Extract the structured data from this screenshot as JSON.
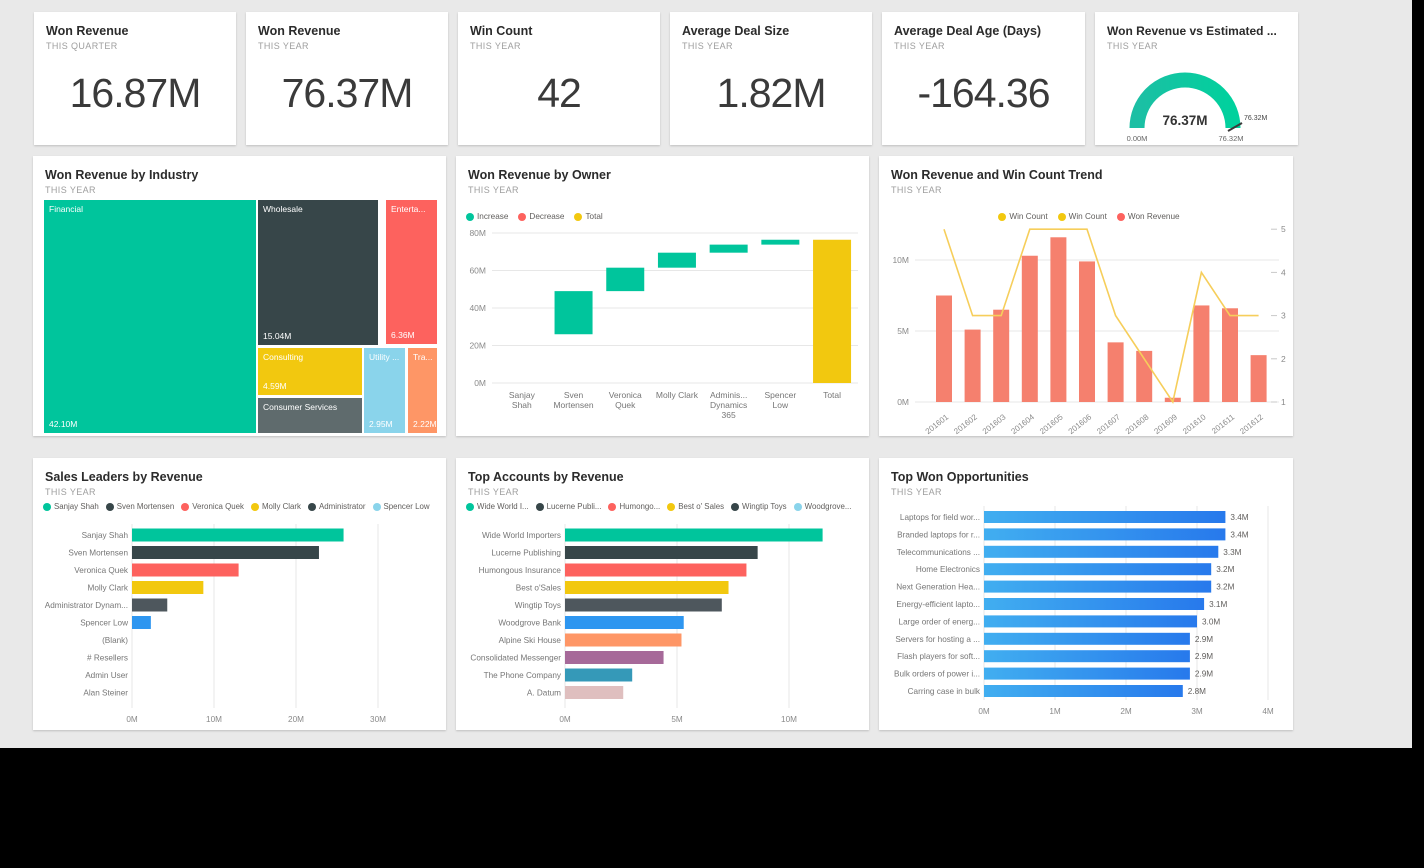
{
  "colors": {
    "canvas_bg": "#E9E9E9",
    "tile_bg": "#FFFFFF",
    "green": "#00C59C",
    "dark_slate": "#374649",
    "red": "#FD625E",
    "yellow": "#F2C80F",
    "gray": "#5F6B6D",
    "light_blue": "#8AD4EB",
    "orange": "#FE9666",
    "vivid_blue": "#2E96F0",
    "purple": "#A66999",
    "teal_blue": "#3599B8",
    "dusty_pink": "#DFBFBF",
    "salmon_bar": "#F5806E",
    "amber_line": "#F6CE5B",
    "admin_gray": "#4E575D",
    "gridline": "#E7E7E7",
    "axis_text": "#8A8A8A"
  },
  "chart_data": [
    {
      "type": "kpi",
      "title": "Won Revenue",
      "subtitle": "THIS QUARTER",
      "value": "16.87M"
    },
    {
      "type": "kpi",
      "title": "Won Revenue",
      "subtitle": "THIS YEAR",
      "value": "76.37M"
    },
    {
      "type": "kpi",
      "title": "Win Count",
      "subtitle": "THIS YEAR",
      "value": "42"
    },
    {
      "type": "kpi",
      "title": "Average Deal Size",
      "subtitle": "THIS YEAR",
      "value": "1.82M"
    },
    {
      "type": "kpi",
      "title": "Average Deal Age (Days)",
      "subtitle": "THIS YEAR",
      "value": "-164.36"
    },
    {
      "type": "gauge",
      "title": "Won Revenue vs Estimated ...",
      "subtitle": "THIS YEAR",
      "value": 76.37,
      "min": 0,
      "max": 76.32,
      "value_label": "76.37M",
      "min_label": "0.00M",
      "max_label": "76.32M",
      "target_label": "76.32M",
      "color_start": "#1CBFA4",
      "color_end": "#00D19D"
    },
    {
      "type": "treemap",
      "title": "Won Revenue by Industry",
      "subtitle": "THIS YEAR",
      "items": [
        {
          "label": "Financial",
          "value": 42.1,
          "value_label": "42.10M",
          "color": "#00C59C"
        },
        {
          "label": "Wholesale",
          "value": 15.04,
          "value_label": "15.04M",
          "color": "#374649"
        },
        {
          "label": "Enterta...",
          "value": 6.36,
          "value_label": "6.36M",
          "color": "#FD625E"
        },
        {
          "label": "Consulting",
          "value": 4.59,
          "value_label": "4.59M",
          "color": "#F2C80F"
        },
        {
          "label": "Consumer Services",
          "value_label": "",
          "color": "#5F6B6D"
        },
        {
          "label": "Utility ...",
          "value": 2.95,
          "value_label": "2.95M",
          "color": "#8AD4EB"
        },
        {
          "label": "Tra...",
          "value": 2.22,
          "value_label": "2.22M",
          "color": "#FE9666"
        }
      ]
    },
    {
      "type": "waterfall",
      "title": "Won Revenue by Owner",
      "subtitle": "THIS YEAR",
      "legend": [
        {
          "label": "Increase",
          "color": "#00C59C"
        },
        {
          "label": "Decrease",
          "color": "#FD625E"
        },
        {
          "label": "Total",
          "color": "#F2C80F"
        }
      ],
      "y_ticks": [
        {
          "label": "0M",
          "v": 0
        },
        {
          "label": "20M",
          "v": 20
        },
        {
          "label": "40M",
          "v": 40
        },
        {
          "label": "60M",
          "v": 60
        },
        {
          "label": "80M",
          "v": 80
        }
      ],
      "ylim": [
        0,
        84
      ],
      "unit": "M",
      "categories": [
        "Sanjay Shah",
        "Sven Mortensen",
        "Veronica Quek",
        "Molly Clark",
        "Adminis... Dynamics 365",
        "Spencer Low",
        "Total"
      ],
      "category_lines": [
        [
          "Sanjay",
          "Shah"
        ],
        [
          "Sven",
          "Mortensen"
        ],
        [
          "Veronica",
          "Quek"
        ],
        [
          "Molly Clark"
        ],
        [
          "Adminis...",
          "Dynamics",
          "365"
        ],
        [
          "Spencer",
          "Low"
        ],
        [
          "Total"
        ]
      ],
      "bars": [
        {
          "category": "Sven Mortensen",
          "index": 1,
          "from": 26,
          "to": 49,
          "kind": "increase"
        },
        {
          "category": "Veronica Quek",
          "index": 2,
          "from": 49,
          "to": 61.5,
          "kind": "increase"
        },
        {
          "category": "Molly Clark",
          "index": 3,
          "from": 61.5,
          "to": 69.5,
          "kind": "increase"
        },
        {
          "category": "Adminis... Dynamics 365",
          "index": 4,
          "from": 69.5,
          "to": 73.8,
          "kind": "increase"
        },
        {
          "category": "Spencer Low",
          "index": 5,
          "from": 73.8,
          "to": 76.4,
          "kind": "increase"
        },
        {
          "category": "Total",
          "index": 6,
          "from": 0,
          "to": 76.4,
          "kind": "total"
        }
      ]
    },
    {
      "type": "combo",
      "title": "Won Revenue and Win Count Trend",
      "subtitle": "THIS YEAR",
      "legend": [
        {
          "label": "Win Count",
          "color": "#F2C80F"
        },
        {
          "label": "Win Count",
          "color": "#F2C80F"
        },
        {
          "label": "Won Revenue",
          "color": "#FD625E"
        }
      ],
      "categories": [
        "201601",
        "201602",
        "201603",
        "201604",
        "201605",
        "201606",
        "201607",
        "201608",
        "201609",
        "201610",
        "201611",
        "201612"
      ],
      "bar_series": {
        "name": "Won Revenue",
        "unit": "M",
        "values": [
          7.5,
          5.1,
          6.5,
          10.3,
          11.6,
          9.9,
          4.2,
          3.6,
          0.3,
          6.8,
          6.6,
          3.3
        ]
      },
      "line_series": {
        "name": "Win Count",
        "values": [
          5,
          3,
          3,
          5,
          5,
          5,
          3,
          2,
          1,
          4,
          3,
          3
        ]
      },
      "left_ticks": [
        {
          "label": "0M",
          "v": 0
        },
        {
          "label": "5M",
          "v": 5
        },
        {
          "label": "10M",
          "v": 10
        }
      ],
      "right_ticks": [
        {
          "label": "1",
          "v": 1
        },
        {
          "label": "2",
          "v": 2
        },
        {
          "label": "3",
          "v": 3
        },
        {
          "label": "4",
          "v": 4
        },
        {
          "label": "5",
          "v": 5
        }
      ],
      "left_ylim": [
        0,
        12.7
      ],
      "right_ylim": [
        1,
        5
      ]
    },
    {
      "type": "bar",
      "title": "Sales Leaders by Revenue",
      "subtitle": "THIS YEAR",
      "legend": [
        {
          "label": "Sanjay Shah",
          "color": "#00C59C"
        },
        {
          "label": "Sven Mortensen",
          "color": "#374649"
        },
        {
          "label": "Veronica Quek",
          "color": "#FD625E"
        },
        {
          "label": "Molly Clark",
          "color": "#F2C80F"
        },
        {
          "label": "Administrator",
          "color": "#374649"
        },
        {
          "label": "Spencer Low",
          "color": "#8AD4EB"
        }
      ],
      "categories": [
        "Sanjay Shah",
        "Sven Mortensen",
        "Veronica Quek",
        "Molly Clark",
        "Administrator Dynam...",
        "Spencer Low",
        "(Blank)",
        "# Resellers",
        "Admin User",
        "Alan Steiner"
      ],
      "values": [
        25.8,
        22.8,
        13.0,
        8.7,
        4.3,
        2.3,
        0,
        0,
        0,
        0
      ],
      "bar_colors": [
        "#00C59C",
        "#374649",
        "#FD625E",
        "#F2C80F",
        "#4E575D",
        "#2E96F0",
        "",
        "",
        "",
        ""
      ],
      "x_ticks": [
        {
          "label": "0M",
          "v": 0
        },
        {
          "label": "10M",
          "v": 10
        },
        {
          "label": "20M",
          "v": 20
        },
        {
          "label": "30M",
          "v": 30
        }
      ],
      "xlim": [
        0,
        37
      ],
      "unit": "M",
      "show_value_labels": false
    },
    {
      "type": "bar",
      "title": "Top Accounts by Revenue",
      "subtitle": "THIS YEAR",
      "legend": [
        {
          "label": "Wide World I...",
          "color": "#00C59C"
        },
        {
          "label": "Lucerne Publi...",
          "color": "#374649"
        },
        {
          "label": "Humongo...",
          "color": "#FD625E"
        },
        {
          "label": "Best o' Sales",
          "color": "#F2C80F"
        },
        {
          "label": "Wingtip Toys",
          "color": "#374649"
        },
        {
          "label": "Woodgrove...",
          "color": "#8AD4EB"
        }
      ],
      "categories": [
        "Wide World Importers",
        "Lucerne Publishing",
        "Humongous Insurance",
        "Best o'Sales",
        "Wingtip Toys",
        "Woodgrove Bank",
        "Alpine Ski House",
        "Consolidated Messenger",
        "The Phone Company",
        "A. Datum"
      ],
      "values": [
        11.5,
        8.6,
        8.1,
        7.3,
        7.0,
        5.3,
        5.2,
        4.4,
        3.0,
        2.6
      ],
      "bar_colors": [
        "#00C59C",
        "#374649",
        "#FD625E",
        "#F2C80F",
        "#4E575D",
        "#2E96F0",
        "#FE9666",
        "#A66999",
        "#3599B8",
        "#DFBFBF"
      ],
      "x_ticks": [
        {
          "label": "0M",
          "v": 0
        },
        {
          "label": "5M",
          "v": 5
        },
        {
          "label": "10M",
          "v": 10
        }
      ],
      "xlim": [
        0,
        13.5
      ],
      "unit": "M",
      "show_value_labels": false
    },
    {
      "type": "bar",
      "title": "Top Won Opportunities",
      "subtitle": "THIS YEAR",
      "legend": [],
      "categories": [
        "Laptops for field wor...",
        "Branded laptops for r...",
        "Telecommunications ...",
        "Home Electronics",
        "Next Generation Hea...",
        "Energy-efficient lapto...",
        "Large order of energ...",
        "Servers for hosting a ...",
        "Flash players for soft...",
        "Bulk orders of power i...",
        "Carring case in bulk"
      ],
      "values": [
        3.4,
        3.4,
        3.3,
        3.2,
        3.2,
        3.1,
        3.0,
        2.9,
        2.9,
        2.9,
        2.8
      ],
      "value_labels": [
        "3.4M",
        "3.4M",
        "3.3M",
        "3.2M",
        "3.2M",
        "3.1M",
        "3.0M",
        "2.9M",
        "2.9M",
        "2.9M",
        "2.8M"
      ],
      "bar_colors": [
        "grad",
        "grad",
        "grad",
        "grad",
        "grad",
        "grad",
        "grad",
        "grad",
        "grad",
        "grad",
        "grad"
      ],
      "x_ticks": [
        {
          "label": "0M",
          "v": 0
        },
        {
          "label": "1M",
          "v": 1
        },
        {
          "label": "2M",
          "v": 2
        },
        {
          "label": "3M",
          "v": 3
        },
        {
          "label": "4M",
          "v": 4
        }
      ],
      "xlim": [
        0,
        4.2
      ],
      "unit": "M",
      "show_value_labels": true,
      "gradient": {
        "start": "#41AEF0",
        "end": "#2779EC"
      }
    }
  ]
}
